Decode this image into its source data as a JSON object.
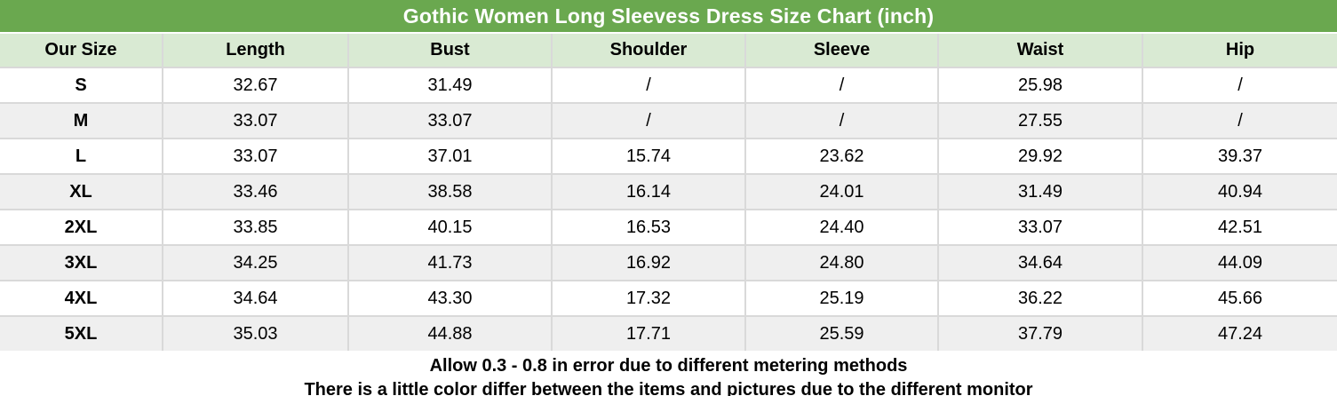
{
  "title": "Gothic Women Long Sleevess Dress Size Chart (inch)",
  "chart_data": {
    "type": "table",
    "title": "Gothic Women Long Sleevess Dress Size Chart (inch)",
    "unit": "inch",
    "columns": [
      "Our Size",
      "Length",
      "Bust",
      "Shoulder",
      "Sleeve",
      "Waist",
      "Hip"
    ],
    "rows": [
      [
        "S",
        "32.67",
        "31.49",
        "/",
        "/",
        "25.98",
        "/"
      ],
      [
        "M",
        "33.07",
        "33.07",
        "/",
        "/",
        "27.55",
        "/"
      ],
      [
        "L",
        "33.07",
        "37.01",
        "15.74",
        "23.62",
        "29.92",
        "39.37"
      ],
      [
        "XL",
        "33.46",
        "38.58",
        "16.14",
        "24.01",
        "31.49",
        "40.94"
      ],
      [
        "2XL",
        "33.85",
        "40.15",
        "16.53",
        "24.40",
        "33.07",
        "42.51"
      ],
      [
        "3XL",
        "34.25",
        "41.73",
        "16.92",
        "24.80",
        "34.64",
        "44.09"
      ],
      [
        "4XL",
        "34.64",
        "43.30",
        "17.32",
        "25.19",
        "36.22",
        "45.66"
      ],
      [
        "5XL",
        "35.03",
        "44.88",
        "17.71",
        "25.59",
        "37.79",
        "47.24"
      ]
    ]
  },
  "notes": [
    "Allow 0.3 - 0.8 in error due to different metering methods",
    "There is a little color differ between the items and pictures due to the different monitor"
  ],
  "colors": {
    "title_bg": "#6aa84f",
    "title_text": "#ffffff",
    "header_bg": "#d9ead3",
    "row_alt_bg": "#efefef",
    "border": "#d9d9d9",
    "text": "#000000"
  }
}
